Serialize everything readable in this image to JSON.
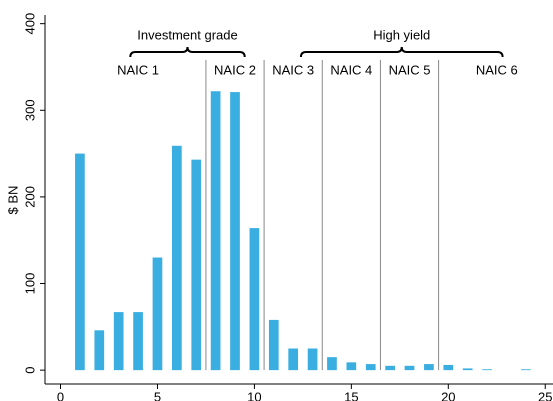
{
  "chart_data": {
    "type": "bar",
    "y_label": "$ BN",
    "x": [
      1,
      2,
      3,
      4,
      5,
      6,
      7,
      8,
      9,
      10,
      11,
      12,
      13,
      14,
      15,
      16,
      17,
      18,
      19,
      20,
      21,
      22,
      24
    ],
    "values": [
      250,
      46,
      67,
      67,
      130,
      259,
      243,
      322,
      321,
      164,
      58,
      25,
      25,
      15,
      9,
      7,
      5,
      5,
      7,
      6,
      2,
      1,
      1
    ],
    "color": "#3aaee0",
    "xlim": [
      -0.8,
      25.4
    ],
    "ylim": [
      -16,
      410
    ],
    "xticks": [
      0,
      5,
      10,
      15,
      20,
      25
    ],
    "yticks": [
      0,
      100,
      200,
      300,
      400
    ],
    "dividers": [
      7.5,
      10.5,
      13.5,
      16.5,
      19.5
    ],
    "groups": [
      {
        "label": "Investment grade",
        "from": 3.6,
        "to": 9.5
      },
      {
        "label": "High yield",
        "from": 12.4,
        "to": 22.8
      }
    ],
    "class_labels": [
      {
        "label": "NAIC 1",
        "x": 4.0
      },
      {
        "label": "NAIC 2",
        "x": 9.0
      },
      {
        "label": "NAIC 3",
        "x": 12.0
      },
      {
        "label": "NAIC 4",
        "x": 15.0
      },
      {
        "label": "NAIC 5",
        "x": 18.0
      },
      {
        "label": "NAIC 6",
        "x": 22.5
      }
    ]
  }
}
